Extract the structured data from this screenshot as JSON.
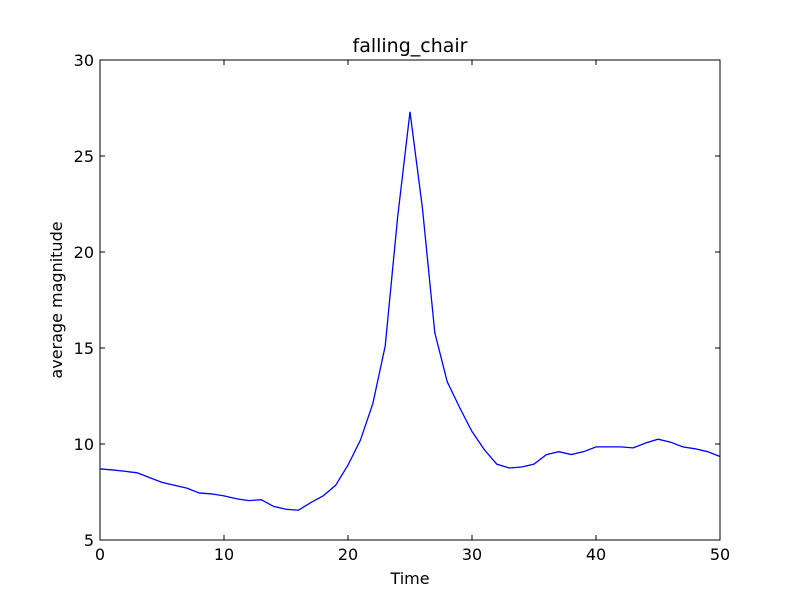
{
  "chart_data": {
    "type": "line",
    "title": "falling_chair",
    "xlabel": "Time",
    "ylabel": "average magnitude",
    "xlim": [
      0,
      50
    ],
    "ylim": [
      5,
      30
    ],
    "xticks": [
      0,
      10,
      20,
      30,
      40,
      50
    ],
    "yticks": [
      5,
      10,
      15,
      20,
      25,
      30
    ],
    "grid": false,
    "line_color": "#0000ff",
    "series": [
      {
        "x": [
          0,
          1,
          2,
          3,
          4,
          5,
          6,
          7,
          8,
          9,
          10,
          11,
          12,
          13,
          14,
          15,
          16,
          17,
          18,
          19,
          20,
          21,
          22,
          23,
          24,
          25,
          26,
          27,
          28,
          29,
          30,
          31,
          32,
          33,
          34,
          35,
          36,
          37,
          38,
          39,
          40,
          41,
          42,
          43,
          44,
          45,
          46,
          47,
          48,
          49,
          50
        ],
        "values": [
          8.7,
          8.65,
          8.58,
          8.5,
          8.25,
          8.0,
          7.85,
          7.7,
          7.45,
          7.4,
          7.3,
          7.15,
          7.05,
          7.1,
          6.75,
          6.6,
          6.55,
          6.95,
          7.3,
          7.85,
          8.9,
          10.2,
          12.1,
          15.1,
          21.8,
          27.3,
          22.3,
          15.8,
          13.25,
          11.9,
          10.65,
          9.7,
          8.95,
          8.75,
          8.8,
          8.95,
          9.45,
          9.6,
          9.45,
          9.6,
          9.85,
          9.85,
          9.85,
          9.8,
          10.05,
          10.25,
          10.1,
          9.85,
          9.75,
          9.6,
          9.35
        ]
      }
    ]
  }
}
